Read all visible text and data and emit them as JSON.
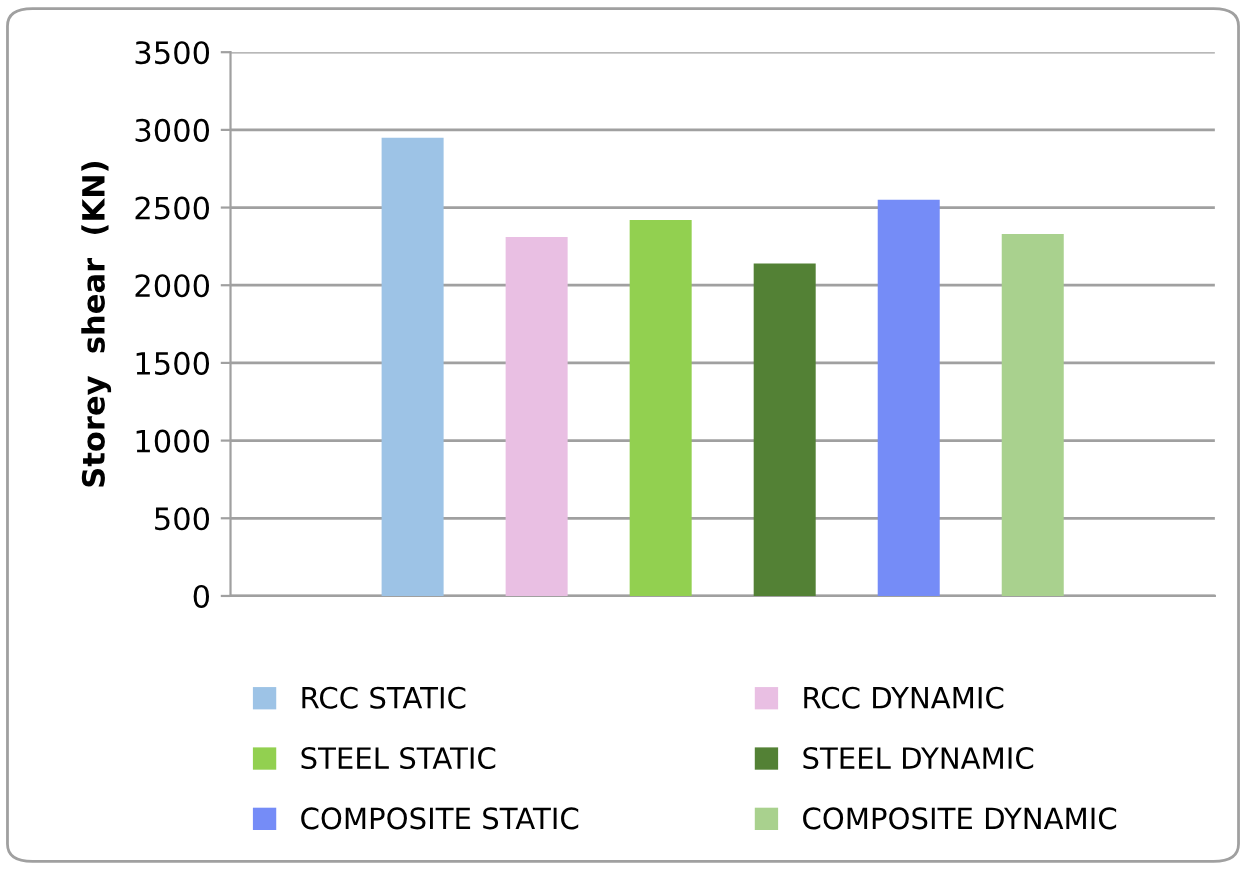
{
  "chart_data": {
    "type": "bar",
    "ylabel": "Storey  shear  (KN)",
    "categories": [
      null
    ],
    "series": [
      {
        "name": "RCC STATIC",
        "color": "#9dc3e6",
        "values": [
          2950
        ]
      },
      {
        "name": "RCC DYNAMIC",
        "color": "#e9bfe3",
        "values": [
          2310
        ]
      },
      {
        "name": "STEEL STATIC",
        "color": "#92d050",
        "values": [
          2420
        ]
      },
      {
        "name": "STEEL DYNAMIC",
        "color": "#538135",
        "values": [
          2140
        ]
      },
      {
        "name": "COMPOSITE STATIC",
        "color": "#758cf7",
        "values": [
          2550
        ]
      },
      {
        "name": "COMPOSITE DYNAMIC",
        "color": "#a9d18e",
        "values": [
          2330
        ]
      }
    ],
    "ylim": [
      0,
      3500
    ],
    "yticks": [
      0,
      500,
      1000,
      1500,
      2000,
      2500,
      3000,
      3500
    ],
    "grid": "y",
    "legend": "bottom"
  }
}
